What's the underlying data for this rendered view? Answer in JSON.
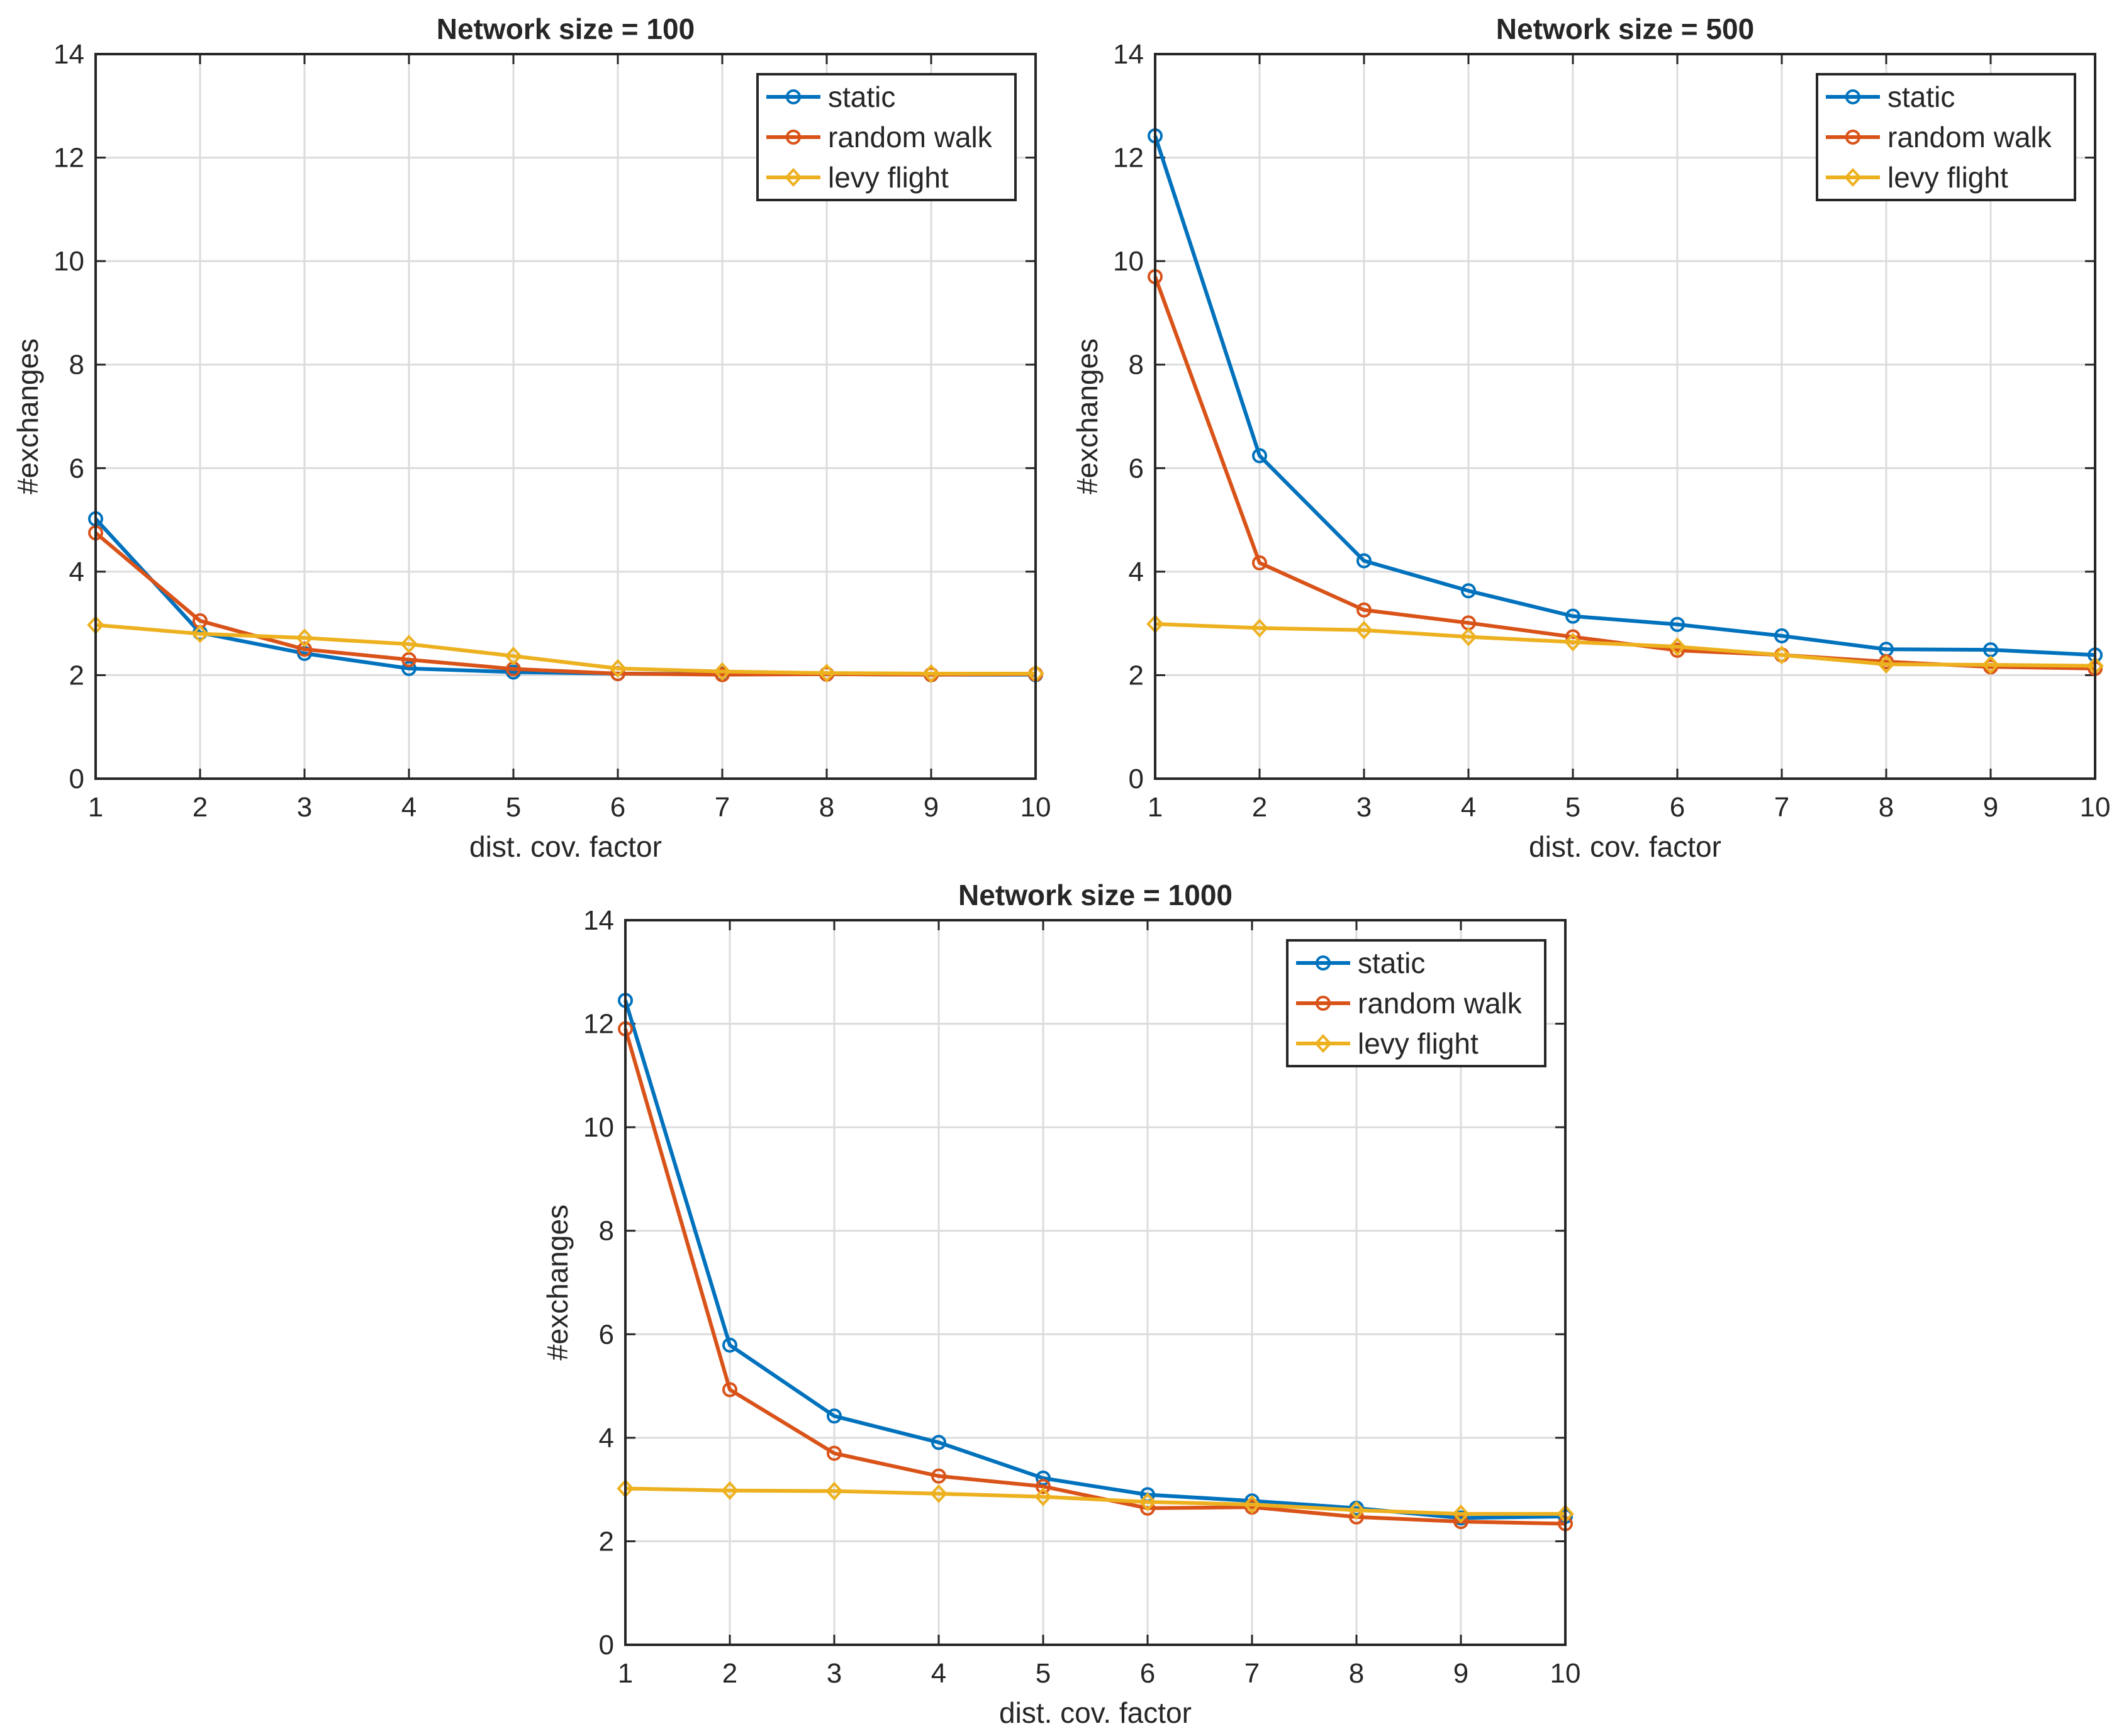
{
  "chart_data": [
    {
      "type": "line",
      "title": "Network size = 100",
      "xlabel": "dist. cov. factor",
      "ylabel": "#exchanges",
      "x": [
        1,
        2,
        3,
        4,
        5,
        6,
        7,
        8,
        9,
        10
      ],
      "xlim": [
        1,
        10
      ],
      "ylim": [
        0,
        14
      ],
      "xticks": [
        1,
        2,
        3,
        4,
        5,
        6,
        7,
        8,
        9,
        10
      ],
      "yticks": [
        0,
        2,
        4,
        6,
        8,
        10,
        12,
        14
      ],
      "grid": true,
      "legend_position": "top-right",
      "series": [
        {
          "name": "static",
          "color": "#0072BD",
          "marker": "circle",
          "values": [
            5.02,
            2.82,
            2.42,
            2.13,
            2.06,
            2.03,
            2.02,
            2.02,
            2.01,
            2.01
          ]
        },
        {
          "name": "random walk",
          "color": "#D95319",
          "marker": "circle",
          "values": [
            4.75,
            3.05,
            2.5,
            2.3,
            2.12,
            2.03,
            2.01,
            2.02,
            2.01,
            2.02
          ]
        },
        {
          "name": "levy flight",
          "color": "#EDB120",
          "marker": "diamond",
          "values": [
            2.97,
            2.8,
            2.72,
            2.6,
            2.37,
            2.13,
            2.07,
            2.04,
            2.03,
            2.03
          ]
        }
      ]
    },
    {
      "type": "line",
      "title": "Network size = 500",
      "xlabel": "dist. cov. factor",
      "ylabel": "#exchanges",
      "x": [
        1,
        2,
        3,
        4,
        5,
        6,
        7,
        8,
        9,
        10
      ],
      "xlim": [
        1,
        10
      ],
      "ylim": [
        0,
        14
      ],
      "xticks": [
        1,
        2,
        3,
        4,
        5,
        6,
        7,
        8,
        9,
        10
      ],
      "yticks": [
        0,
        2,
        4,
        6,
        8,
        10,
        12,
        14
      ],
      "grid": true,
      "legend_position": "top-right",
      "series": [
        {
          "name": "static",
          "color": "#0072BD",
          "marker": "circle",
          "values": [
            12.42,
            6.24,
            4.21,
            3.63,
            3.14,
            2.98,
            2.76,
            2.5,
            2.49,
            2.39
          ]
        },
        {
          "name": "random walk",
          "color": "#D95319",
          "marker": "circle",
          "values": [
            9.7,
            4.17,
            3.26,
            3.01,
            2.74,
            2.48,
            2.39,
            2.26,
            2.16,
            2.13
          ]
        },
        {
          "name": "levy flight",
          "color": "#EDB120",
          "marker": "diamond",
          "values": [
            2.99,
            2.91,
            2.87,
            2.74,
            2.64,
            2.55,
            2.39,
            2.21,
            2.2,
            2.18
          ]
        }
      ]
    },
    {
      "type": "line",
      "title": "Network size = 1000",
      "xlabel": "dist. cov. factor",
      "ylabel": "#exchanges",
      "x": [
        1,
        2,
        3,
        4,
        5,
        6,
        7,
        8,
        9,
        10
      ],
      "xlim": [
        1,
        10
      ],
      "ylim": [
        0,
        14
      ],
      "xticks": [
        1,
        2,
        3,
        4,
        5,
        6,
        7,
        8,
        9,
        10
      ],
      "yticks": [
        0,
        2,
        4,
        6,
        8,
        10,
        12,
        14
      ],
      "grid": true,
      "legend_position": "top-right",
      "series": [
        {
          "name": "static",
          "color": "#0072BD",
          "marker": "circle",
          "values": [
            12.45,
            5.79,
            4.42,
            3.91,
            3.22,
            2.9,
            2.78,
            2.64,
            2.45,
            2.48
          ]
        },
        {
          "name": "random walk",
          "color": "#D95319",
          "marker": "circle",
          "values": [
            11.9,
            4.93,
            3.7,
            3.26,
            3.06,
            2.64,
            2.66,
            2.47,
            2.38,
            2.34
          ]
        },
        {
          "name": "levy flight",
          "color": "#EDB120",
          "marker": "diamond",
          "values": [
            3.02,
            2.98,
            2.97,
            2.92,
            2.86,
            2.76,
            2.71,
            2.6,
            2.53,
            2.53
          ]
        }
      ]
    }
  ]
}
